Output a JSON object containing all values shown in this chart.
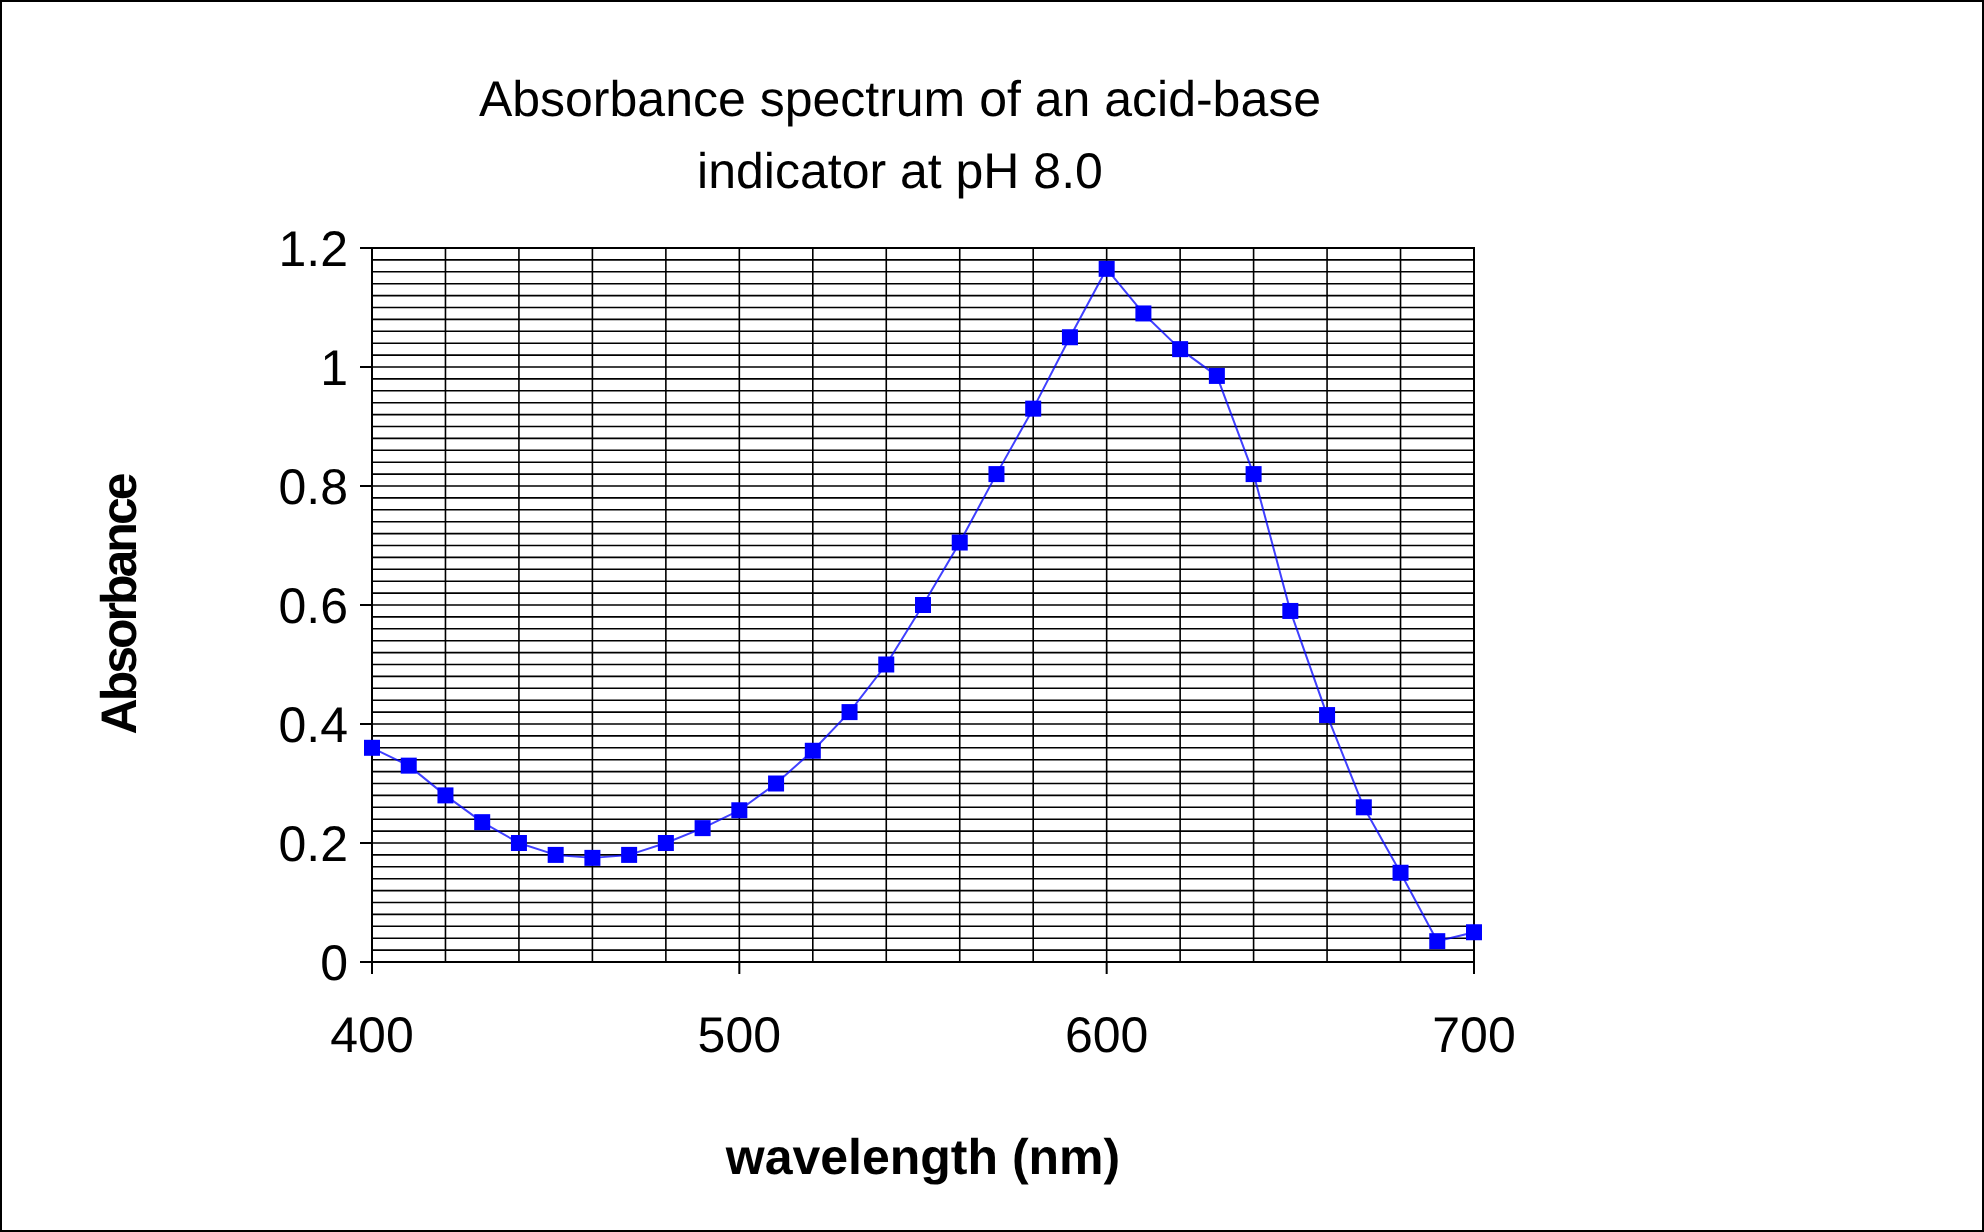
{
  "chart_data": {
    "type": "line",
    "title": "Absorbance spectrum of an acid-base indicator at pH 8.0",
    "xlabel": "wavelength (nm)",
    "ylabel": "Absorbance",
    "x": [
      400,
      410,
      420,
      430,
      440,
      450,
      460,
      470,
      480,
      490,
      500,
      510,
      520,
      530,
      540,
      550,
      560,
      570,
      580,
      590,
      600,
      610,
      620,
      630,
      640,
      650,
      660,
      670,
      680,
      690,
      700
    ],
    "series": [
      {
        "color": "#0000ff",
        "values": [
          0.36,
          0.33,
          0.28,
          0.235,
          0.2,
          0.18,
          0.175,
          0.18,
          0.2,
          0.225,
          0.255,
          0.3,
          0.355,
          0.42,
          0.5,
          0.6,
          0.705,
          0.82,
          0.93,
          1.05,
          1.165,
          1.09,
          1.03,
          0.985,
          0.82,
          0.59,
          0.415,
          0.26,
          0.15,
          0.035,
          0.05
        ]
      }
    ],
    "xlim": [
      400,
      700
    ],
    "ylim": [
      0,
      1.2
    ],
    "xticks": [
      400,
      {
        "value": 420,
        "label": null
      },
      {
        "value": 440,
        "label": null
      },
      {
        "value": 460,
        "label": null
      },
      {
        "value": 480,
        "label": null
      },
      500,
      {
        "value": 520,
        "label": null
      },
      {
        "value": 540,
        "label": null
      },
      {
        "value": 560,
        "label": null
      },
      {
        "value": 580,
        "label": null
      },
      600,
      {
        "value": 620,
        "label": null
      },
      {
        "value": 640,
        "label": null
      },
      {
        "value": 660,
        "label": null
      },
      {
        "value": 680,
        "label": null
      },
      700
    ],
    "yticks": [
      0,
      {
        "value": 0.02,
        "label": null
      },
      {
        "value": 0.04,
        "label": null
      },
      {
        "value": 0.06,
        "label": null
      },
      {
        "value": 0.08,
        "label": null
      },
      {
        "value": 0.1,
        "label": null
      },
      {
        "value": 0.12,
        "label": null
      },
      {
        "value": 0.14,
        "label": null
      },
      {
        "value": 0.16,
        "label": null
      },
      {
        "value": 0.18,
        "label": null
      },
      0.2,
      {
        "value": 0.22,
        "label": null
      },
      {
        "value": 0.24,
        "label": null
      },
      {
        "value": 0.26,
        "label": null
      },
      {
        "value": 0.28,
        "label": null
      },
      {
        "value": 0.3,
        "label": null
      },
      {
        "value": 0.32,
        "label": null
      },
      {
        "value": 0.34,
        "label": null
      },
      {
        "value": 0.36,
        "label": null
      },
      {
        "value": 0.38,
        "label": null
      },
      0.4,
      {
        "value": 0.42,
        "label": null
      },
      {
        "value": 0.44,
        "label": null
      },
      {
        "value": 0.46,
        "label": null
      },
      {
        "value": 0.48,
        "label": null
      },
      {
        "value": 0.5,
        "label": null
      },
      {
        "value": 0.52,
        "label": null
      },
      {
        "value": 0.54,
        "label": null
      },
      {
        "value": 0.56,
        "label": null
      },
      {
        "value": 0.58,
        "label": null
      },
      0.6,
      {
        "value": 0.62,
        "label": null
      },
      {
        "value": 0.64,
        "label": null
      },
      {
        "value": 0.66,
        "label": null
      },
      {
        "value": 0.68,
        "label": null
      },
      {
        "value": 0.7,
        "label": null
      },
      {
        "value": 0.72,
        "label": null
      },
      {
        "value": 0.74,
        "label": null
      },
      {
        "value": 0.76,
        "label": null
      },
      {
        "value": 0.78,
        "label": null
      },
      0.8,
      {
        "value": 0.82,
        "label": null
      },
      {
        "value": 0.84,
        "label": null
      },
      {
        "value": 0.86,
        "label": null
      },
      {
        "value": 0.88,
        "label": null
      },
      {
        "value": 0.9,
        "label": null
      },
      {
        "value": 0.92,
        "label": null
      },
      {
        "value": 0.94,
        "label": null
      },
      {
        "value": 0.96,
        "label": null
      },
      {
        "value": 0.98,
        "label": null
      },
      1,
      {
        "value": 1.02,
        "label": null
      },
      {
        "value": 1.04,
        "label": null
      },
      {
        "value": 1.06,
        "label": null
      },
      {
        "value": 1.08,
        "label": null
      },
      {
        "value": 1.1,
        "label": null
      },
      {
        "value": 1.12,
        "label": null
      },
      {
        "value": 1.14,
        "label": null
      },
      {
        "value": 1.16,
        "label": null
      },
      {
        "value": 1.18,
        "label": null
      },
      1.2
    ],
    "grid": true,
    "marker": "square",
    "line_style": "solid"
  }
}
